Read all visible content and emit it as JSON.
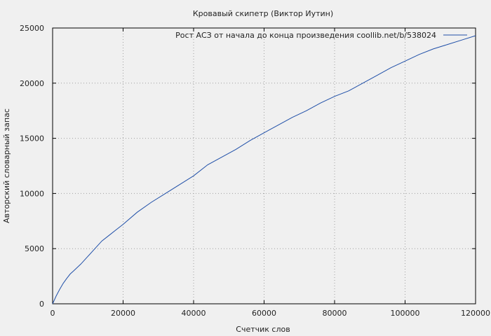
{
  "chart_data": {
    "type": "line",
    "title": "Кровавый скипетр (Виктор Иутин)",
    "xlabel": "Счетчик слов",
    "ylabel": "Авторский словарный запас",
    "xlim": [
      0,
      120000
    ],
    "ylim": [
      0,
      25000
    ],
    "xticks": [
      0,
      20000,
      40000,
      60000,
      80000,
      100000,
      120000
    ],
    "xtick_labels": [
      "0",
      "20000",
      "40000",
      "60000",
      "80000",
      "100000",
      "120000"
    ],
    "yticks": [
      0,
      5000,
      10000,
      15000,
      20000,
      25000
    ],
    "ytick_labels": [
      "0",
      "5000",
      "10000",
      "15000",
      "20000",
      "25000"
    ],
    "grid": true,
    "legend_position": "top-right",
    "series": [
      {
        "name": "Рост АСЗ от начала до конца произведения  coollib.net/b/538024",
        "color": "#1f4fa8",
        "x": [
          0,
          1000,
          2000,
          3000,
          4000,
          5000,
          6000,
          8000,
          10000,
          12000,
          14000,
          16000,
          18000,
          20000,
          24000,
          28000,
          32000,
          36000,
          40000,
          44000,
          48000,
          52000,
          56000,
          60000,
          64000,
          68000,
          72000,
          76000,
          80000,
          84000,
          88000,
          92000,
          96000,
          100000,
          104000,
          108000,
          112000,
          116000,
          120000
        ],
        "y": [
          0,
          700,
          1300,
          1850,
          2300,
          2700,
          3000,
          3600,
          4300,
          5000,
          5700,
          6200,
          6700,
          7200,
          8300,
          9200,
          10000,
          10800,
          11600,
          12600,
          13300,
          14000,
          14800,
          15500,
          16200,
          16900,
          17500,
          18200,
          18800,
          19300,
          20000,
          20700,
          21400,
          22000,
          22600,
          23100,
          23500,
          23900,
          24300
        ]
      }
    ]
  }
}
